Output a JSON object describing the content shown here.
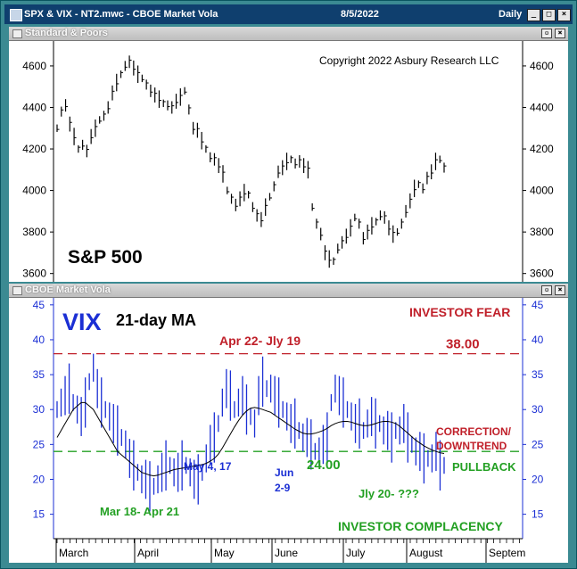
{
  "window": {
    "title": "SPX & VIX - NT2.mwc - CBOE Market Vola",
    "date": "8/5/2022",
    "interval": "Daily"
  },
  "panes": {
    "top_label": "Standard & Poors",
    "bottom_label": "CBOE Market Vola"
  },
  "chart_data": [
    {
      "type": "line",
      "series_style": "ohlc-bars",
      "ylim": [
        3560,
        4720
      ],
      "y_ticks": [
        "4600",
        "4400",
        "4200",
        "4000",
        "3800",
        "3600"
      ],
      "y_tick_values": [
        4600,
        4400,
        4200,
        4000,
        3800,
        3600
      ],
      "copyright": "Copyright 2022 Asbury Research LLC",
      "label": "S&P 500",
      "grid": false,
      "series": [
        {
          "values": [
            4300,
            4380,
            4410,
            4320,
            4260,
            4200,
            4220,
            4190,
            4260,
            4300,
            4340,
            4360,
            4400,
            4470,
            4520,
            4560,
            4600,
            4620,
            4590,
            4560,
            4540,
            4510,
            4480,
            4460,
            4440,
            4420,
            4410,
            4400,
            4430,
            4450,
            4480,
            4390,
            4300,
            4290,
            4240,
            4200,
            4160,
            4150,
            4120,
            4080,
            4000,
            3960,
            3930,
            3960,
            3990,
            3980,
            3920,
            3880,
            3860,
            3920,
            3970,
            4020,
            4090,
            4110,
            4140,
            4150,
            4130,
            4140,
            4120,
            4100,
            3920,
            3840,
            3790,
            3700,
            3670,
            3660,
            3720,
            3750,
            3780,
            3820,
            3870,
            3840,
            3770,
            3800,
            3830,
            3850,
            3880,
            3870,
            3820,
            3790,
            3800,
            3840,
            3900,
            3950,
            4010,
            4030,
            4010,
            4060,
            4090,
            4140,
            4150,
            4110
          ]
        }
      ]
    },
    {
      "type": "line",
      "ylim": [
        11.5,
        46
      ],
      "y_ticks": [
        "45",
        "40",
        "35",
        "30",
        "25",
        "20",
        "15"
      ],
      "y_tick_values": [
        45,
        40,
        35,
        30,
        25,
        20,
        15
      ],
      "x_ticks": [
        "March",
        "April",
        "May",
        "June",
        "July",
        "August",
        "Septem"
      ],
      "grid": false,
      "legend": [
        {
          "text": "VIX",
          "color": "#1b2fd4"
        },
        {
          "text": "21-day MA",
          "color": "#000000"
        }
      ],
      "reference_lines": [
        {
          "value": 38.0,
          "label": "38.00",
          "color": "#c0202a"
        },
        {
          "value": 24.0,
          "label": "24.00",
          "color": "#23a023"
        }
      ],
      "series": [
        {
          "name": "VIX",
          "color": "#1b2fd4",
          "values": [
            30,
            31,
            32,
            33,
            31,
            30,
            29,
            31,
            34,
            36,
            33,
            31,
            30,
            29,
            28,
            27,
            26,
            25,
            23,
            22,
            21,
            20,
            20,
            19,
            19,
            20,
            21,
            22,
            22,
            21,
            21,
            22,
            22,
            21,
            20,
            20,
            21,
            23,
            25,
            26,
            28,
            31,
            33,
            32,
            30,
            31,
            32,
            30,
            29,
            28,
            32,
            34,
            33,
            33,
            32,
            31,
            30,
            29,
            28,
            28,
            27,
            26,
            26,
            25,
            24,
            24,
            25,
            26,
            31,
            33,
            32,
            31,
            30,
            29,
            28,
            28,
            27,
            28,
            29,
            28,
            28,
            27,
            27,
            26,
            27,
            27,
            28,
            26,
            25,
            24,
            24,
            23,
            23,
            23,
            24,
            22,
            22
          ]
        },
        {
          "name": "21-day MA",
          "color": "#000000",
          "values": [
            26,
            27,
            28,
            29,
            30,
            30.5,
            31,
            31,
            30.5,
            30,
            29,
            28,
            27,
            26,
            25,
            24,
            23.5,
            23,
            22.5,
            22,
            21.5,
            21,
            20.8,
            20.6,
            20.5,
            20.6,
            20.8,
            21,
            21.2,
            21.4,
            21.5,
            21.6,
            21.7,
            21.8,
            21.9,
            22,
            22.1,
            22.3,
            22.6,
            23,
            23.6,
            24.5,
            25.5,
            26.5,
            27.5,
            28.4,
            29.2,
            29.8,
            30.2,
            30.3,
            30.2,
            30,
            29.8,
            29.6,
            29.2,
            28.8,
            28.4,
            28,
            27.6,
            27.2,
            26.9,
            26.6,
            26.5,
            26.5,
            26.6,
            26.8,
            27,
            27.3,
            27.7,
            28,
            28.2,
            28.3,
            28.3,
            28.2,
            28,
            27.8,
            27.7,
            27.7,
            27.8,
            28,
            28.2,
            28.3,
            28.3,
            28.2,
            28,
            27.6,
            27.1,
            26.6,
            26.1,
            25.6,
            25.2,
            24.8,
            24.5,
            24.2,
            24,
            23.8,
            23.7
          ]
        }
      ],
      "annotations": [
        {
          "text": "INVESTOR FEAR",
          "color": "#c0202a"
        },
        {
          "text": "Apr 22- Jly 19",
          "color": "#c0202a"
        },
        {
          "text": "CORRECTION/",
          "color": "#c0202a"
        },
        {
          "text": "DOWNTREND",
          "color": "#c0202a"
        },
        {
          "text": "PULLBACK",
          "color": "#23a023"
        },
        {
          "text": "May 4, 17",
          "color": "#1b2fd4"
        },
        {
          "text": "Jun",
          "color": "#1b2fd4"
        },
        {
          "text": "2-9",
          "color": "#1b2fd4"
        },
        {
          "text": "Mar 18- Apr 21",
          "color": "#23a023"
        },
        {
          "text": "Jly 20- ???",
          "color": "#23a023"
        },
        {
          "text": "INVESTOR COMPLACENCY",
          "color": "#23a023"
        }
      ]
    }
  ]
}
